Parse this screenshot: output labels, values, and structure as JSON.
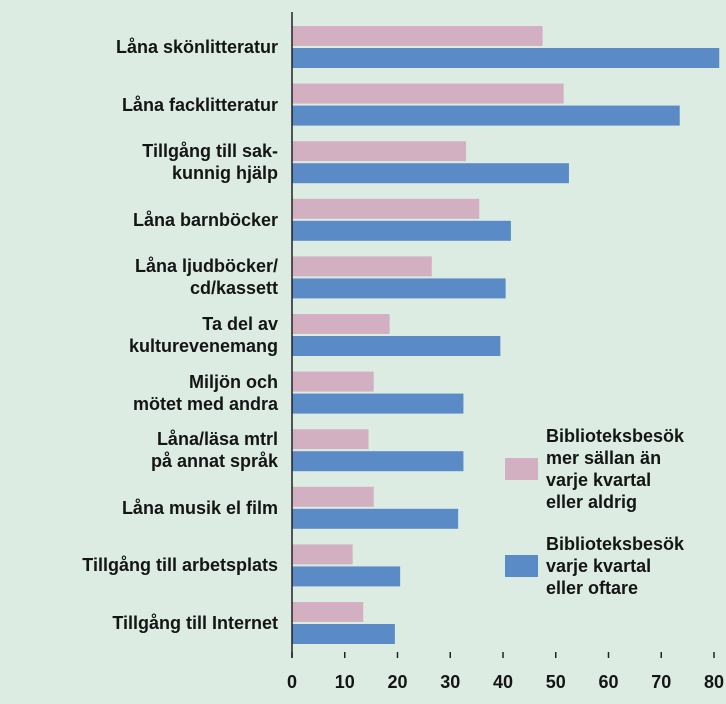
{
  "chart_data": {
    "type": "barh",
    "categories": [
      "Låna skönlitteratur",
      "Låna facklitteratur",
      "Tillgång till sak-\nkunnig hjälp",
      "Låna barnböcker",
      "Låna ljudböcker/\ncd/kassett",
      "Ta del av\nkulturevenemang",
      "Miljön och\nmötet med andra",
      "Låna/läsa mtrl\npå annat språk",
      "Låna musik el film",
      "Tillgång till arbetsplats",
      "Tillgång till Internet"
    ],
    "series": [
      {
        "name": "Biblioteksbesök\nmer sällan än\nvarje kvartal\neller aldrig",
        "color": "#d3b0c1",
        "values": [
          47.5,
          51.5,
          33,
          35.5,
          26.5,
          18.5,
          15.5,
          14.5,
          15.5,
          11.5,
          13.5
        ]
      },
      {
        "name": "Biblioteksbesök\nvarje kvartal\neller oftare",
        "color": "#5a8bc7",
        "values": [
          81,
          73.5,
          52.5,
          41.5,
          40.5,
          39.5,
          32.5,
          32.5,
          31.5,
          20.5,
          19.5
        ]
      }
    ],
    "xlim": [
      0,
      80
    ],
    "xticks": [
      0,
      10,
      20,
      30,
      40,
      50,
      60,
      70,
      80
    ]
  }
}
